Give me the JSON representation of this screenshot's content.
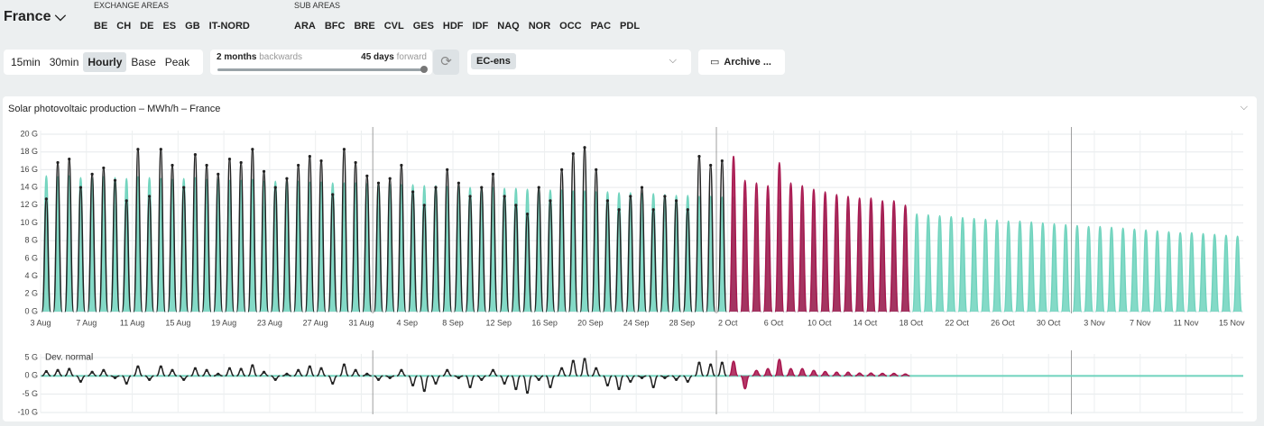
{
  "header": {
    "area": "France",
    "exchange_title": "EXCHANGE AREAS",
    "exchange_areas": [
      "BE",
      "CH",
      "DE",
      "ES",
      "GB",
      "IT-NORD"
    ],
    "sub_title": "SUB AREAS",
    "sub_areas": [
      "ARA",
      "BFC",
      "BRE",
      "CVL",
      "GES",
      "HDF",
      "IDF",
      "NAQ",
      "NOR",
      "OCC",
      "PAC",
      "PDL"
    ]
  },
  "controls": {
    "granularity": [
      "15min",
      "30min",
      "Hourly",
      "Base",
      "Peak"
    ],
    "selected_granularity": "Hourly",
    "backwards_amount": "2 months",
    "backwards_label": "backwards",
    "forward_amount": "45 days",
    "forward_label": "forward",
    "model": "EC-ens",
    "archive": "Archive ..."
  },
  "chart_data": {
    "type": "area",
    "title": "Solar photovoltaic production – MWh/h – France",
    "x": [
      "3 Aug",
      "4 Aug",
      "5 Aug",
      "6 Aug",
      "7 Aug",
      "8 Aug",
      "9 Aug",
      "10 Aug",
      "11 Aug",
      "12 Aug",
      "13 Aug",
      "14 Aug",
      "15 Aug",
      "16 Aug",
      "17 Aug",
      "18 Aug",
      "19 Aug",
      "20 Aug",
      "21 Aug",
      "22 Aug",
      "23 Aug",
      "24 Aug",
      "25 Aug",
      "26 Aug",
      "27 Aug",
      "28 Aug",
      "29 Aug",
      "30 Aug",
      "31 Aug",
      "1 Sep",
      "2 Sep",
      "3 Sep",
      "4 Sep",
      "5 Sep",
      "6 Sep",
      "7 Sep",
      "8 Sep",
      "9 Sep",
      "10 Sep",
      "11 Sep",
      "12 Sep",
      "13 Sep",
      "14 Sep",
      "15 Sep",
      "16 Sep",
      "17 Sep",
      "18 Sep",
      "19 Sep",
      "20 Sep",
      "21 Sep",
      "22 Sep",
      "23 Sep",
      "24 Sep",
      "25 Sep",
      "26 Sep",
      "27 Sep",
      "28 Sep",
      "29 Sep",
      "30 Sep",
      "1 Oct",
      "2 Oct",
      "3 Oct",
      "4 Oct",
      "5 Oct",
      "6 Oct",
      "7 Oct",
      "8 Oct",
      "9 Oct",
      "10 Oct",
      "11 Oct",
      "12 Oct",
      "13 Oct",
      "14 Oct",
      "15 Oct",
      "16 Oct",
      "17 Oct",
      "18 Oct",
      "19 Oct",
      "20 Oct",
      "21 Oct",
      "22 Oct",
      "23 Oct",
      "24 Oct",
      "25 Oct",
      "26 Oct",
      "27 Oct",
      "28 Oct",
      "29 Oct",
      "30 Oct",
      "31 Oct",
      "1 Nov",
      "2 Nov",
      "3 Nov",
      "4 Nov",
      "5 Nov",
      "6 Nov",
      "7 Nov",
      "8 Nov",
      "9 Nov",
      "10 Nov",
      "11 Nov",
      "12 Nov",
      "13 Nov",
      "14 Nov",
      "15 Nov"
    ],
    "xticks": [
      "3 Aug",
      "7 Aug",
      "11 Aug",
      "15 Aug",
      "19 Aug",
      "23 Aug",
      "27 Aug",
      "31 Aug",
      "4 Sep",
      "8 Sep",
      "12 Sep",
      "16 Sep",
      "20 Sep",
      "24 Sep",
      "28 Sep",
      "2 Oct",
      "6 Oct",
      "10 Oct",
      "14 Oct",
      "18 Oct",
      "22 Oct",
      "26 Oct",
      "30 Oct",
      "3 Nov",
      "7 Nov",
      "11 Nov",
      "15 Nov"
    ],
    "ylim": [
      0,
      20
    ],
    "yticks": [
      {
        "value": 0,
        "label": "0 G"
      },
      {
        "value": 2,
        "label": "2 G"
      },
      {
        "value": 4,
        "label": "4 G"
      },
      {
        "value": 6,
        "label": "6 G"
      },
      {
        "value": 8,
        "label": "8 G"
      },
      {
        "value": 10,
        "label": "10 G"
      },
      {
        "value": 12,
        "label": "12 G"
      },
      {
        "value": 14,
        "label": "14 G"
      },
      {
        "value": 16,
        "label": "16 G"
      },
      {
        "value": 18,
        "label": "18 G"
      },
      {
        "value": 20,
        "label": "20 G"
      }
    ],
    "grid": true,
    "series": [
      {
        "color": "#6fd3bd",
        "fill": true,
        "values": [
          15.3,
          15.2,
          15.3,
          15.1,
          15.0,
          15.2,
          15.1,
          15.0,
          15.2,
          15.1,
          15.0,
          14.9,
          15.0,
          15.1,
          14.9,
          14.9,
          14.8,
          14.8,
          14.9,
          14.7,
          14.7,
          14.6,
          14.7,
          14.6,
          14.6,
          14.5,
          14.5,
          14.5,
          14.4,
          14.4,
          14.3,
          14.3,
          14.3,
          14.2,
          14.2,
          14.1,
          14.1,
          14.0,
          14.0,
          14.0,
          13.9,
          13.9,
          13.8,
          13.8,
          13.7,
          13.7,
          13.6,
          13.6,
          13.5,
          13.5,
          13.4,
          13.4,
          13.3,
          13.3,
          13.2,
          13.1,
          13.1,
          13.0,
          13.0,
          12.9,
          12.9,
          12.8,
          12.7,
          12.7,
          12.6,
          12.5,
          12.5,
          12.4,
          12.3,
          12.3,
          12.2,
          12.1,
          12.0,
          11.9,
          11.9,
          11.8,
          11.0,
          10.9,
          10.8,
          10.7,
          10.6,
          10.5,
          10.4,
          10.3,
          10.2,
          10.2,
          10.1,
          10.0,
          9.9,
          9.8,
          9.7,
          9.6,
          9.6,
          9.5,
          9.4,
          9.3,
          9.2,
          9.1,
          9.0,
          8.9,
          8.9,
          8.8,
          8.7,
          8.6,
          8.5
        ]
      },
      {
        "color": "#222222",
        "fill": false,
        "markers": true,
        "values": [
          12.7,
          16.8,
          17.2,
          14.0,
          15.5,
          16.2,
          14.8,
          12.5,
          18.3,
          13.0,
          18.3,
          16.5,
          14.0,
          17.7,
          16.5,
          15.5,
          17.2,
          16.8,
          18.3,
          15.8,
          14.0,
          15.0,
          16.5,
          17.5,
          17.0,
          13.2,
          18.3,
          16.8,
          15.3,
          14.5,
          15.0,
          16.5,
          13.5,
          12.0,
          14.0,
          16.0,
          14.5,
          13.0,
          14.0,
          15.5,
          13.0,
          12.0,
          11.0,
          14.0,
          12.5,
          16.0,
          17.8,
          18.5,
          16.0,
          12.5,
          11.5,
          13.0,
          14.0,
          11.5,
          13.0,
          12.5,
          11.5,
          17.5,
          16.5,
          17.0,
          null,
          null,
          null,
          null,
          null,
          null,
          null,
          null,
          null,
          null,
          null,
          null,
          null,
          null,
          null,
          null,
          null,
          null,
          null,
          null,
          null,
          null,
          null,
          null,
          null,
          null,
          null,
          null,
          null,
          null,
          null,
          null,
          null,
          null,
          null,
          null,
          null,
          null,
          null,
          null,
          null,
          null,
          null,
          null,
          null
        ]
      },
      {
        "color": "#a8174f",
        "fill": true,
        "values": [
          null,
          null,
          null,
          null,
          null,
          null,
          null,
          null,
          null,
          null,
          null,
          null,
          null,
          null,
          null,
          null,
          null,
          null,
          null,
          null,
          null,
          null,
          null,
          null,
          null,
          null,
          null,
          null,
          null,
          null,
          null,
          null,
          null,
          null,
          null,
          null,
          null,
          null,
          null,
          null,
          null,
          null,
          null,
          null,
          null,
          null,
          null,
          null,
          null,
          null,
          null,
          null,
          null,
          null,
          null,
          null,
          null,
          null,
          null,
          null,
          17.5,
          14.8,
          14.5,
          14.2,
          16.8,
          14.5,
          14.2,
          13.8,
          13.5,
          13.2,
          13.0,
          12.8,
          12.8,
          12.5,
          12.5,
          12.0,
          null,
          null,
          null,
          null,
          null,
          null,
          null,
          null,
          null,
          null,
          null,
          null,
          null,
          null,
          null,
          null,
          null,
          null,
          null,
          null,
          null,
          null,
          null,
          null,
          null,
          null,
          null,
          null,
          null
        ]
      }
    ],
    "deviation": {
      "title": "Dev. normal",
      "ylim": [
        -10,
        5
      ],
      "yticks": [
        {
          "value": 5,
          "label": "5 G"
        },
        {
          "value": 0,
          "label": "0 G"
        },
        {
          "value": -5,
          "label": "-5 G"
        },
        {
          "value": -10,
          "label": "-10 G"
        }
      ],
      "series": [
        {
          "color": "#222222",
          "markers": true,
          "values": [
            1.2,
            1.5,
            1.8,
            -1.5,
            1.0,
            1.5,
            -0.5,
            -2.0,
            2.5,
            -1.0,
            2.5,
            1.5,
            -1.0,
            2.0,
            1.5,
            0.5,
            2.0,
            1.8,
            2.8,
            1.0,
            -1.0,
            0.5,
            1.5,
            2.5,
            2.0,
            -2.0,
            3.0,
            1.5,
            0.5,
            -1.0,
            -0.5,
            1.5,
            -2.5,
            -4.0,
            -2.0,
            1.5,
            -0.5,
            -3.0,
            -1.0,
            1.5,
            -2.0,
            -3.5,
            -4.5,
            -1.0,
            -3.0,
            2.0,
            4.0,
            4.5,
            2.0,
            -2.5,
            -3.5,
            -1.5,
            -0.5,
            -3.0,
            -0.5,
            -1.0,
            -1.5,
            3.5,
            3.0,
            3.5,
            null,
            null,
            null,
            null,
            null,
            null,
            null,
            null,
            null,
            null,
            null,
            null,
            null,
            null,
            null,
            null,
            null,
            null,
            null,
            null,
            null,
            null,
            null,
            null,
            null,
            null,
            null,
            null,
            null,
            null,
            null,
            null,
            null,
            null,
            null,
            null,
            null,
            null,
            null,
            null,
            null,
            null,
            null,
            null,
            null
          ]
        },
        {
          "color": "#a8174f",
          "fill": true,
          "values": [
            null,
            null,
            null,
            null,
            null,
            null,
            null,
            null,
            null,
            null,
            null,
            null,
            null,
            null,
            null,
            null,
            null,
            null,
            null,
            null,
            null,
            null,
            null,
            null,
            null,
            null,
            null,
            null,
            null,
            null,
            null,
            null,
            null,
            null,
            null,
            null,
            null,
            null,
            null,
            null,
            null,
            null,
            null,
            null,
            null,
            null,
            null,
            null,
            null,
            null,
            null,
            null,
            null,
            null,
            null,
            null,
            null,
            null,
            null,
            null,
            4.0,
            -3.5,
            1.5,
            2.0,
            4.5,
            2.0,
            2.0,
            1.5,
            1.2,
            1.0,
            1.0,
            0.8,
            0.8,
            0.7,
            0.7,
            0.5,
            null,
            null,
            null,
            null,
            null,
            null,
            null,
            null,
            null,
            null,
            null,
            null,
            null,
            null,
            null,
            null,
            null,
            null,
            null,
            null,
            null,
            null,
            null,
            null,
            null,
            null,
            null,
            null,
            null
          ]
        }
      ]
    }
  }
}
